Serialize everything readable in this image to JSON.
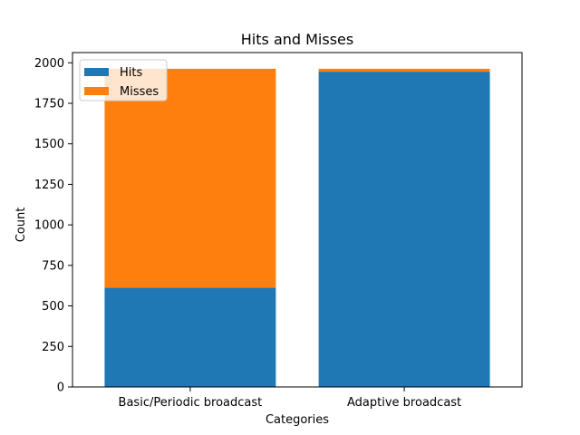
{
  "chart_data": {
    "type": "bar",
    "stacked": true,
    "title": "Hits and Misses",
    "xlabel": "Categories",
    "ylabel": "Count",
    "categories": [
      "Basic/Periodic broadcast",
      "Adaptive broadcast"
    ],
    "series": [
      {
        "name": "Hits",
        "values": [
          613,
          1945
        ],
        "color": "#1f77b4"
      },
      {
        "name": "Misses",
        "values": [
          1350,
          18
        ],
        "color": "#ff7f0e"
      }
    ],
    "ylim": [
      0,
      2000
    ],
    "yticks": [
      0,
      250,
      500,
      750,
      1000,
      1250,
      1500,
      1750,
      2000
    ],
    "ytick_labels": [
      "0",
      "250",
      "500",
      "750",
      "1000",
      "1250",
      "1500",
      "1750",
      "2000"
    ],
    "grid": false,
    "legend_position": "top-left"
  }
}
